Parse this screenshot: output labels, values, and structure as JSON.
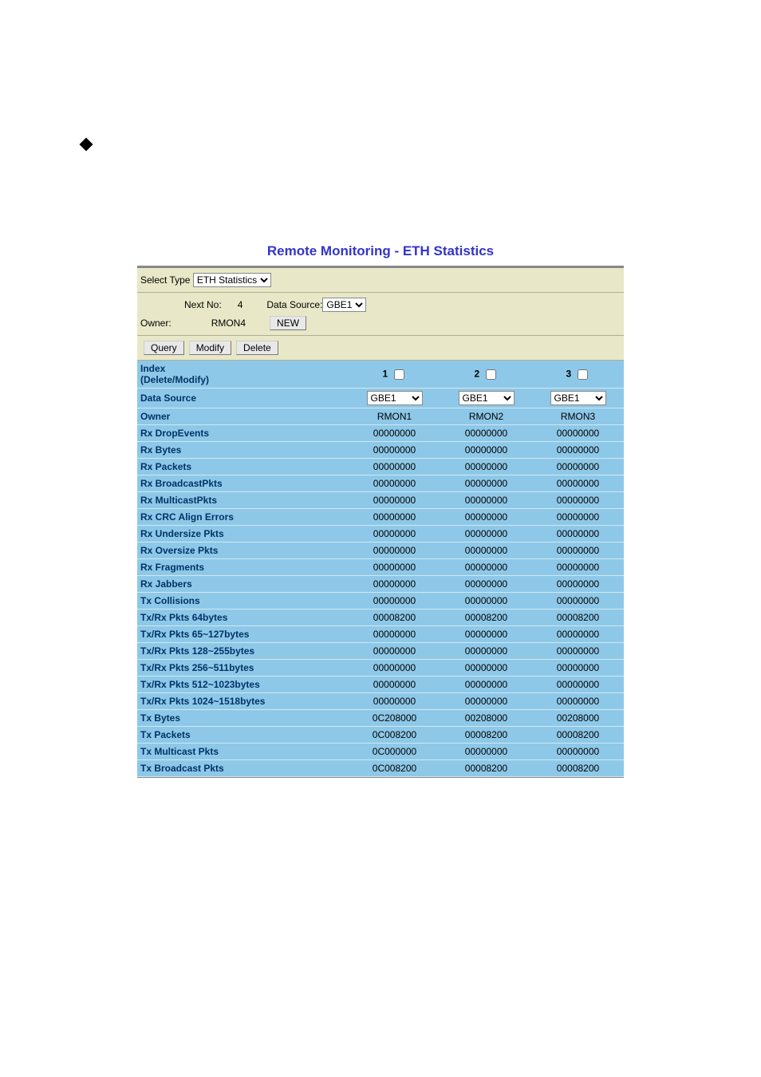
{
  "title": "Remote Monitoring - ETH Statistics",
  "colors": {
    "title_color": "#3333cc",
    "header_bg": "#e8e8c8",
    "row_bg": "#8ec8e8",
    "label_color": "#003366",
    "border_top": "#888888"
  },
  "header": {
    "select_type_label": "Select Type",
    "select_type_value": "ETH Statistics",
    "next_no_label": "Next No:",
    "next_no_value": "4",
    "data_source_label": "Data Source:",
    "data_source_value": "GBE1",
    "owner_label": "Owner:",
    "owner_value": "RMON4",
    "new_button": "NEW",
    "query_button": "Query",
    "modify_button": "Modify",
    "delete_button": "Delete"
  },
  "columns": [
    {
      "index": "1",
      "data_source": "GBE1",
      "owner": "RMON1"
    },
    {
      "index": "2",
      "data_source": "GBE1",
      "owner": "RMON2"
    },
    {
      "index": "3",
      "data_source": "GBE1",
      "owner": "RMON3"
    }
  ],
  "row_headers": {
    "index": "Index\n(Delete/Modify)",
    "data_source": "Data Source",
    "owner": "Owner"
  },
  "stats": [
    {
      "label": "Rx DropEvents",
      "v": [
        "00000000",
        "00000000",
        "00000000"
      ]
    },
    {
      "label": "Rx Bytes",
      "v": [
        "00000000",
        "00000000",
        "00000000"
      ]
    },
    {
      "label": "Rx Packets",
      "v": [
        "00000000",
        "00000000",
        "00000000"
      ]
    },
    {
      "label": "Rx BroadcastPkts",
      "v": [
        "00000000",
        "00000000",
        "00000000"
      ]
    },
    {
      "label": "Rx MulticastPkts",
      "v": [
        "00000000",
        "00000000",
        "00000000"
      ]
    },
    {
      "label": "Rx CRC Align Errors",
      "v": [
        "00000000",
        "00000000",
        "00000000"
      ]
    },
    {
      "label": "Rx Undersize Pkts",
      "v": [
        "00000000",
        "00000000",
        "00000000"
      ]
    },
    {
      "label": "Rx Oversize Pkts",
      "v": [
        "00000000",
        "00000000",
        "00000000"
      ]
    },
    {
      "label": "Rx Fragments",
      "v": [
        "00000000",
        "00000000",
        "00000000"
      ]
    },
    {
      "label": "Rx Jabbers",
      "v": [
        "00000000",
        "00000000",
        "00000000"
      ]
    },
    {
      "label": "Tx Collisions",
      "v": [
        "00000000",
        "00000000",
        "00000000"
      ]
    },
    {
      "label": "Tx/Rx Pkts 64bytes",
      "v": [
        "00008200",
        "00008200",
        "00008200"
      ]
    },
    {
      "label": "Tx/Rx Pkts 65~127bytes",
      "v": [
        "00000000",
        "00000000",
        "00000000"
      ]
    },
    {
      "label": "Tx/Rx Pkts 128~255bytes",
      "v": [
        "00000000",
        "00000000",
        "00000000"
      ]
    },
    {
      "label": "Tx/Rx Pkts 256~511bytes",
      "v": [
        "00000000",
        "00000000",
        "00000000"
      ]
    },
    {
      "label": "Tx/Rx Pkts 512~1023bytes",
      "v": [
        "00000000",
        "00000000",
        "00000000"
      ]
    },
    {
      "label": "Tx/Rx Pkts 1024~1518bytes",
      "v": [
        "00000000",
        "00000000",
        "00000000"
      ]
    },
    {
      "label": "Tx Bytes",
      "v": [
        "0C208000",
        "00208000",
        "00208000"
      ]
    },
    {
      "label": "Tx Packets",
      "v": [
        "0C008200",
        "00008200",
        "00008200"
      ]
    },
    {
      "label": "Tx Multicast Pkts",
      "v": [
        "0C000000",
        "00000000",
        "00000000"
      ]
    },
    {
      "label": "Tx Broadcast Pkts",
      "v": [
        "0C008200",
        "00008200",
        "00008200"
      ]
    }
  ]
}
